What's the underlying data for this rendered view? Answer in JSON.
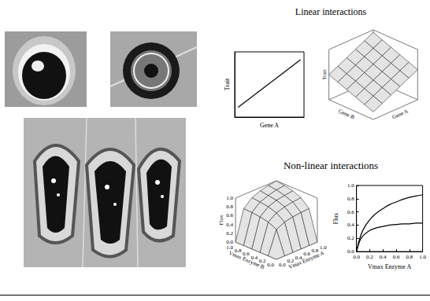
{
  "headings": {
    "linear": "Linear interactions",
    "nonlinear": "Non-linear interactions"
  },
  "chart_data": [
    {
      "type": "line",
      "x_label": "Gene A",
      "y_label": "Trait",
      "x": [
        0.05,
        0.95
      ],
      "values": [
        0.15,
        0.88
      ],
      "color": "#000000",
      "xlim": [
        0,
        1
      ],
      "ylim": [
        0,
        1
      ],
      "tick_labels": false
    },
    {
      "type": "surface",
      "x_label": "Gene A",
      "y_label": "Gene B",
      "z_label": "Trait",
      "x": [
        0,
        0.2,
        0.4,
        0.6,
        0.8,
        1
      ],
      "y": [
        0,
        0.2,
        0.4,
        0.6,
        0.8,
        1
      ],
      "z": [
        [
          0.15,
          0.22,
          0.29,
          0.36,
          0.43,
          0.5
        ],
        [
          0.24,
          0.31,
          0.38,
          0.45,
          0.52,
          0.59
        ],
        [
          0.33,
          0.4,
          0.47,
          0.54,
          0.61,
          0.68
        ],
        [
          0.42,
          0.49,
          0.56,
          0.63,
          0.7,
          0.77
        ],
        [
          0.51,
          0.58,
          0.65,
          0.72,
          0.79,
          0.86
        ],
        [
          0.6,
          0.67,
          0.74,
          0.81,
          0.88,
          0.95
        ]
      ],
      "xlim": [
        0,
        1
      ],
      "ylim": [
        0,
        1
      ],
      "zlim": [
        0,
        1
      ],
      "color": "#e4e4e4",
      "tick_labels": false
    },
    {
      "type": "surface",
      "x_label": "Vmax Enzyme A",
      "y_label": "Vmax Enzyme B",
      "z_label": "Flux",
      "x": [
        0,
        0.2,
        0.4,
        0.6,
        0.8,
        1
      ],
      "y": [
        0,
        0.2,
        0.4,
        0.6,
        0.8,
        1
      ],
      "z": [
        [
          0,
          0,
          0,
          0,
          0,
          0
        ],
        [
          0,
          0.52,
          0.61,
          0.65,
          0.67,
          0.68
        ],
        [
          0,
          0.61,
          0.74,
          0.8,
          0.83,
          0.85
        ],
        [
          0,
          0.65,
          0.8,
          0.87,
          0.9,
          0.93
        ],
        [
          0,
          0.67,
          0.83,
          0.9,
          0.95,
          0.97
        ],
        [
          0,
          0.68,
          0.85,
          0.93,
          0.97,
          1.0
        ]
      ],
      "xlim": [
        0,
        1
      ],
      "ylim": [
        0,
        1
      ],
      "zlim": [
        0,
        1
      ],
      "color": "#e4e4e4",
      "xticks": [
        {
          "value": 0,
          "label": "0.0"
        },
        0.2,
        0.4,
        0.6,
        0.8,
        {
          "value": 1,
          "label": "1.0"
        }
      ],
      "yticks": [
        {
          "value": 0,
          "label": "0.0"
        },
        0.2,
        0.4,
        0.6,
        0.8,
        {
          "value": 1,
          "label": "1.0"
        }
      ],
      "zticks": [
        {
          "value": 0,
          "label": "0.0"
        },
        0.2,
        0.4,
        0.6,
        0.8,
        {
          "value": 1,
          "label": "1.0"
        }
      ]
    },
    {
      "type": "line",
      "x_label": "Vmax Enzyme A",
      "y_label": "Flux",
      "x": [
        0,
        0.05,
        0.1,
        0.2,
        0.3,
        0.4,
        0.5,
        0.6,
        0.7,
        0.8,
        0.9,
        1.0
      ],
      "series": [
        {
          "color": "#000000",
          "values": [
            0,
            0.2,
            0.33,
            0.48,
            0.58,
            0.65,
            0.71,
            0.75,
            0.79,
            0.82,
            0.84,
            0.86
          ]
        },
        {
          "color": "#000000",
          "values": [
            0,
            0.16,
            0.24,
            0.32,
            0.36,
            0.38,
            0.4,
            0.41,
            0.42,
            0.42,
            0.43,
            0.43
          ]
        }
      ],
      "xlim": [
        0,
        1
      ],
      "ylim": [
        0,
        1
      ],
      "xticks": [
        {
          "value": 0,
          "label": "0.0"
        },
        0.2,
        0.4,
        0.6,
        0.8,
        {
          "value": 1,
          "label": "1.0"
        }
      ],
      "yticks": [
        {
          "value": 0,
          "label": "0.0"
        },
        0.2,
        0.4,
        0.6,
        0.8,
        {
          "value": 1,
          "label": "1.0"
        }
      ]
    }
  ]
}
